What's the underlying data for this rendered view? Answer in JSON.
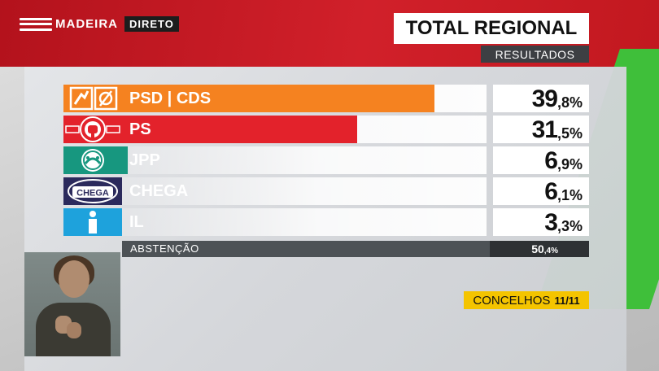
{
  "brand": {
    "name": "MADEIRA",
    "live": "DIRETO"
  },
  "title": "TOTAL REGIONAL",
  "subtitle": "RESULTADOS",
  "colors": {
    "psd": "#f58220",
    "ps": "#e3222b",
    "jpp": "#17977f",
    "chega": "#2b2a5c",
    "il": "#1ea2dc"
  },
  "results": [
    {
      "party": "PSD | CDS",
      "int": "39",
      "dec": ",8%",
      "value": 39.8,
      "logo": "psd-cds-logo-icon"
    },
    {
      "party": "PS",
      "int": "31",
      "dec": ",5%",
      "value": 31.5,
      "logo": "ps-logo-icon"
    },
    {
      "party": "JPP",
      "int": "6",
      "dec": ",9%",
      "value": 6.9,
      "logo": "jpp-logo-icon"
    },
    {
      "party": "CHEGA",
      "int": "6",
      "dec": ",1%",
      "value": 6.1,
      "logo": "chega-logo-icon",
      "logo_text": "CHEGA"
    },
    {
      "party": "IL",
      "int": "3",
      "dec": ",3%",
      "value": 3.3,
      "logo": "il-logo-icon"
    }
  ],
  "abstention": {
    "label": "ABSTENÇÃO",
    "int": "50",
    "dec": ",4%",
    "value": 50.4
  },
  "concelhos": {
    "label": "CONCELHOS",
    "count": "11/11"
  }
}
